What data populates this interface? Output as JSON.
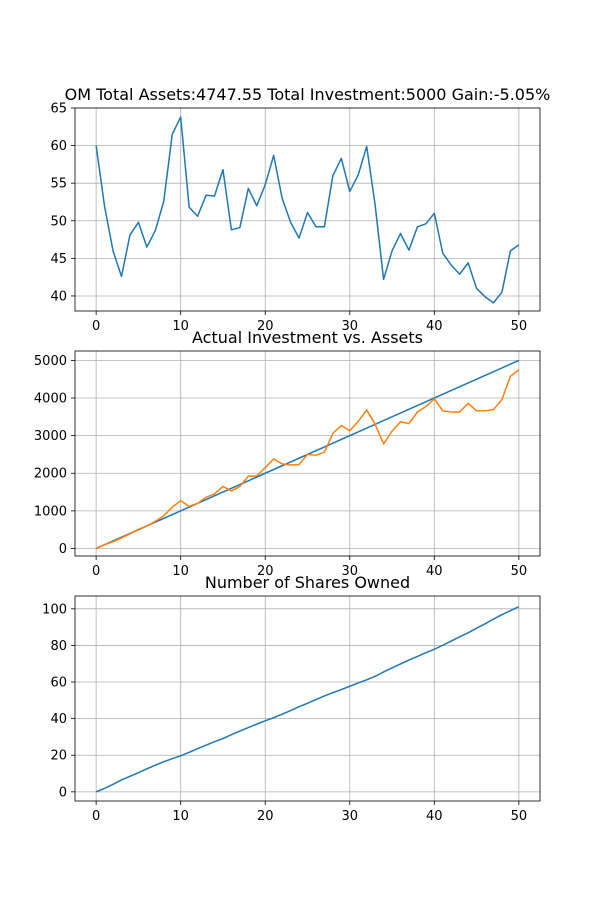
{
  "chart_data": [
    {
      "type": "line",
      "title": "OM Total Assets:4747.55  Total Investment:5000  Gain:-5.05%",
      "xlabel": "",
      "ylabel": "",
      "xlim": [
        -2.5,
        52.5
      ],
      "ylim": [
        38.0,
        65.0
      ],
      "xticks": [
        0,
        10,
        20,
        30,
        40,
        50
      ],
      "yticks": [
        40,
        45,
        50,
        55,
        60,
        65
      ],
      "grid": true,
      "series": [
        {
          "color": "#1f77b4",
          "x": [
            0,
            1,
            2,
            3,
            4,
            5,
            6,
            7,
            8,
            9,
            10,
            11,
            12,
            13,
            14,
            15,
            16,
            17,
            18,
            19,
            20,
            21,
            22,
            23,
            24,
            25,
            26,
            27,
            28,
            29,
            30,
            31,
            32,
            33,
            34,
            35,
            36,
            37,
            38,
            39,
            40,
            41,
            42,
            43,
            44,
            45,
            46,
            47,
            48,
            49,
            50
          ],
          "y": [
            60.0,
            51.9,
            46.0,
            42.6,
            48.1,
            49.8,
            46.5,
            48.7,
            52.6,
            61.5,
            63.8,
            51.8,
            50.6,
            53.4,
            53.3,
            56.8,
            48.8,
            49.1,
            54.3,
            52.0,
            54.8,
            58.7,
            53.0,
            49.8,
            47.7,
            51.1,
            49.2,
            49.2,
            56.0,
            58.3,
            53.9,
            56.1,
            59.9,
            52.1,
            42.2,
            46.0,
            48.3,
            46.1,
            49.2,
            49.6,
            51.0,
            45.7,
            44.1,
            42.9,
            44.4,
            41.0,
            39.9,
            39.1,
            40.5,
            46.0,
            46.8
          ]
        }
      ]
    },
    {
      "type": "line",
      "title": "Actual Investment vs. Assets",
      "xlabel": "",
      "ylabel": "",
      "xlim": [
        -2.5,
        52.5
      ],
      "ylim": [
        -200,
        5250
      ],
      "xticks": [
        0,
        10,
        20,
        30,
        40,
        50
      ],
      "yticks": [
        0,
        1000,
        2000,
        3000,
        4000,
        5000
      ],
      "grid": true,
      "series": [
        {
          "color": "#1f77b4",
          "x": [
            0,
            50
          ],
          "y": [
            0,
            5000
          ]
        },
        {
          "color": "#ff7f0e",
          "x": [
            0,
            1,
            2,
            3,
            4,
            5,
            6,
            7,
            8,
            9,
            10,
            11,
            12,
            13,
            14,
            15,
            16,
            17,
            18,
            19,
            20,
            21,
            22,
            23,
            24,
            25,
            26,
            27,
            28,
            29,
            30,
            31,
            32,
            33,
            34,
            35,
            36,
            37,
            38,
            39,
            40,
            41,
            42,
            43,
            44,
            45,
            46,
            47,
            48,
            49,
            50
          ],
          "y": [
            0,
            100,
            180,
            280,
            390,
            510,
            600,
            720,
            870,
            1100,
            1270,
            1120,
            1200,
            1360,
            1450,
            1650,
            1530,
            1650,
            1920,
            1930,
            2150,
            2380,
            2250,
            2220,
            2230,
            2500,
            2480,
            2560,
            3060,
            3270,
            3130,
            3380,
            3680,
            3300,
            2780,
            3120,
            3370,
            3320,
            3630,
            3770,
            3980,
            3660,
            3630,
            3630,
            3860,
            3660,
            3660,
            3690,
            3960,
            4580,
            4750
          ]
        }
      ]
    },
    {
      "type": "line",
      "title": "Number of Shares Owned",
      "xlabel": "",
      "ylabel": "",
      "xlim": [
        -2.5,
        52.5
      ],
      "ylim": [
        -5,
        107
      ],
      "xticks": [
        0,
        10,
        20,
        30,
        40,
        50
      ],
      "yticks": [
        0,
        20,
        40,
        60,
        80,
        100
      ],
      "grid": true,
      "series": [
        {
          "color": "#1f77b4",
          "x": [
            0,
            1,
            2,
            3,
            4,
            5,
            6,
            7,
            8,
            9,
            10,
            11,
            12,
            13,
            14,
            15,
            16,
            17,
            18,
            19,
            20,
            21,
            22,
            23,
            24,
            25,
            26,
            27,
            28,
            29,
            30,
            31,
            32,
            33,
            34,
            35,
            36,
            37,
            38,
            39,
            40,
            41,
            42,
            43,
            44,
            45,
            46,
            47,
            48,
            49,
            50
          ],
          "y": [
            0,
            1.9,
            4.1,
            6.5,
            8.5,
            10.5,
            12.6,
            14.6,
            16.5,
            18.1,
            19.7,
            21.6,
            23.6,
            25.5,
            27.4,
            29.1,
            31.2,
            33.2,
            35.1,
            37.0,
            38.8,
            40.5,
            42.4,
            44.4,
            46.5,
            48.4,
            50.4,
            52.4,
            54.2,
            55.9,
            57.7,
            59.5,
            61.2,
            63.1,
            65.5,
            67.7,
            69.9,
            72.0,
            74.0,
            76.0,
            77.9,
            80.1,
            82.4,
            84.7,
            86.9,
            89.4,
            91.8,
            94.4,
            96.8,
            99.0,
            101.2
          ]
        }
      ]
    }
  ]
}
